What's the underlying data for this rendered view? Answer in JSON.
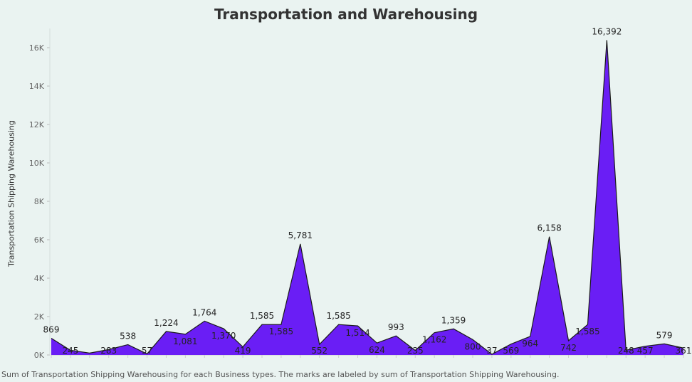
{
  "chart_data": {
    "type": "area",
    "title": "Transportation and Warehousing",
    "xlabel": "",
    "ylabel": "Transportation Shipping Warehousing",
    "caption": "Sum of Transportation Shipping Warehousing for each Business types.  The marks are labeled by sum of Transportation Shipping Warehousing.",
    "ylim": [
      0,
      17000
    ],
    "yticks": [
      {
        "value": 0,
        "label": "0K"
      },
      {
        "value": 2000,
        "label": "2K"
      },
      {
        "value": 4000,
        "label": "4K"
      },
      {
        "value": 6000,
        "label": "6K"
      },
      {
        "value": 8000,
        "label": "8K"
      },
      {
        "value": 10000,
        "label": "10K"
      },
      {
        "value": 12000,
        "label": "12K"
      },
      {
        "value": 14000,
        "label": "14K"
      },
      {
        "value": 16000,
        "label": "16K"
      }
    ],
    "values": [
      869,
      245,
      100,
      283,
      538,
      57,
      1224,
      1081,
      1764,
      1370,
      419,
      1585,
      1585,
      5781,
      552,
      1585,
      1514,
      624,
      993,
      235,
      1162,
      1359,
      800,
      37,
      569,
      964,
      6158,
      742,
      1585,
      16392,
      248,
      457,
      579,
      361
    ],
    "labels": [
      "869",
      "245",
      "",
      "283",
      "538",
      "57",
      "1,224",
      "1,081",
      "1,764",
      "1,370",
      "419",
      "1,585",
      "1,585",
      "5,781",
      "552",
      "1,585",
      "1,514",
      "624",
      "993",
      "235",
      "1,162",
      "1,359",
      "800",
      "37",
      "569",
      "964",
      "6,158",
      "742",
      "1,585",
      "16,392",
      "248",
      "457",
      "579",
      "361"
    ],
    "grid": false,
    "fill_color": "#6a1ef5",
    "line_color": "#1a1a1a"
  }
}
